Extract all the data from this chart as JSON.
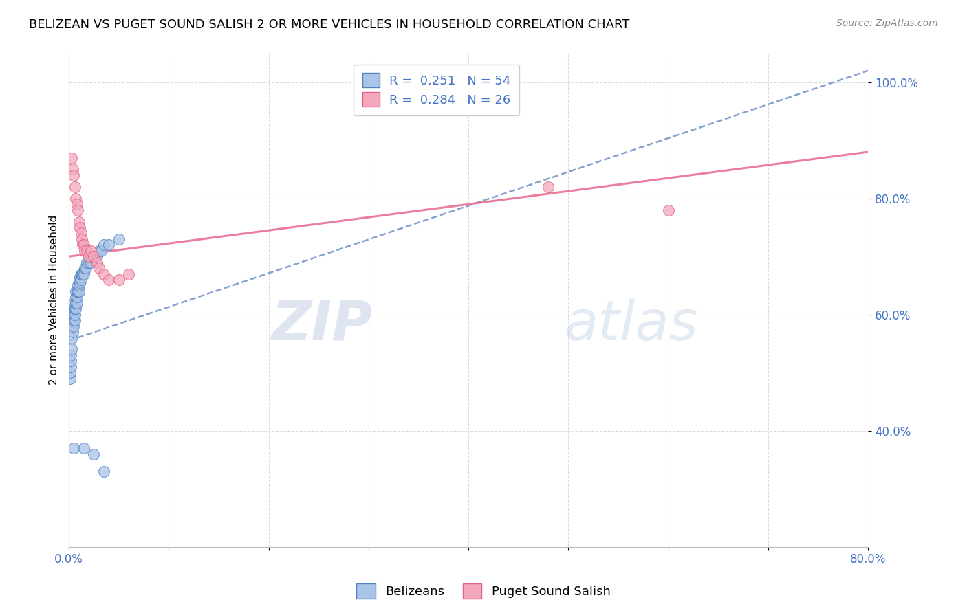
{
  "title": "BELIZEAN VS PUGET SOUND SALISH 2 OR MORE VEHICLES IN HOUSEHOLD CORRELATION CHART",
  "source": "Source: ZipAtlas.com",
  "ylabel": "2 or more Vehicles in Household",
  "xlim": [
    0.0,
    0.8
  ],
  "ylim": [
    0.2,
    1.05
  ],
  "x_ticks": [
    0.0,
    0.1,
    0.2,
    0.3,
    0.4,
    0.5,
    0.6,
    0.7,
    0.8
  ],
  "x_tick_labels": [
    "0.0%",
    "",
    "",
    "",
    "",
    "",
    "",
    "",
    "80.0%"
  ],
  "y_ticks": [
    0.4,
    0.6,
    0.8,
    1.0
  ],
  "y_tick_labels": [
    "40.0%",
    "60.0%",
    "80.0%",
    "100.0%"
  ],
  "legend_r_blue": "0.251",
  "legend_n_blue": "54",
  "legend_r_pink": "0.284",
  "legend_n_pink": "26",
  "blue_color": "#aac4e8",
  "pink_color": "#f4a8bc",
  "blue_edge_color": "#5080c0",
  "pink_edge_color": "#e06080",
  "blue_trend_color": "#7090c8",
  "pink_trend_color": "#e87090",
  "grid_color": "#cccccc",
  "watermark_zip": "ZIP",
  "watermark_atlas": "atlas",
  "blue_x": [
    0.001,
    0.001,
    0.002,
    0.002,
    0.002,
    0.003,
    0.003,
    0.003,
    0.004,
    0.004,
    0.004,
    0.005,
    0.005,
    0.005,
    0.005,
    0.005,
    0.006,
    0.006,
    0.006,
    0.007,
    0.007,
    0.007,
    0.007,
    0.008,
    0.008,
    0.008,
    0.009,
    0.009,
    0.01,
    0.01,
    0.01,
    0.011,
    0.011,
    0.012,
    0.012,
    0.013,
    0.014,
    0.015,
    0.016,
    0.017,
    0.018,
    0.02,
    0.022,
    0.025,
    0.028,
    0.03,
    0.032,
    0.035,
    0.04,
    0.05,
    0.005,
    0.015,
    0.025,
    0.035
  ],
  "blue_y": [
    0.49,
    0.5,
    0.51,
    0.52,
    0.53,
    0.54,
    0.56,
    0.58,
    0.57,
    0.59,
    0.61,
    0.58,
    0.59,
    0.6,
    0.61,
    0.62,
    0.59,
    0.6,
    0.61,
    0.61,
    0.62,
    0.63,
    0.64,
    0.62,
    0.63,
    0.64,
    0.64,
    0.65,
    0.64,
    0.65,
    0.66,
    0.655,
    0.665,
    0.66,
    0.67,
    0.67,
    0.67,
    0.67,
    0.68,
    0.68,
    0.69,
    0.69,
    0.69,
    0.7,
    0.7,
    0.71,
    0.71,
    0.72,
    0.72,
    0.73,
    0.37,
    0.37,
    0.36,
    0.33
  ],
  "pink_x": [
    0.003,
    0.004,
    0.005,
    0.006,
    0.007,
    0.008,
    0.009,
    0.01,
    0.011,
    0.012,
    0.013,
    0.014,
    0.015,
    0.016,
    0.018,
    0.02,
    0.022,
    0.025,
    0.028,
    0.03,
    0.035,
    0.04,
    0.05,
    0.06,
    0.48,
    0.6
  ],
  "pink_y": [
    0.87,
    0.85,
    0.84,
    0.82,
    0.8,
    0.79,
    0.78,
    0.76,
    0.75,
    0.74,
    0.73,
    0.72,
    0.72,
    0.71,
    0.71,
    0.7,
    0.71,
    0.7,
    0.69,
    0.68,
    0.67,
    0.66,
    0.66,
    0.67,
    0.82,
    0.78
  ],
  "blue_trend_x": [
    0.0,
    0.8
  ],
  "blue_trend_y": [
    0.555,
    1.02
  ],
  "pink_trend_x": [
    0.0,
    0.8
  ],
  "pink_trend_y": [
    0.7,
    0.88
  ]
}
